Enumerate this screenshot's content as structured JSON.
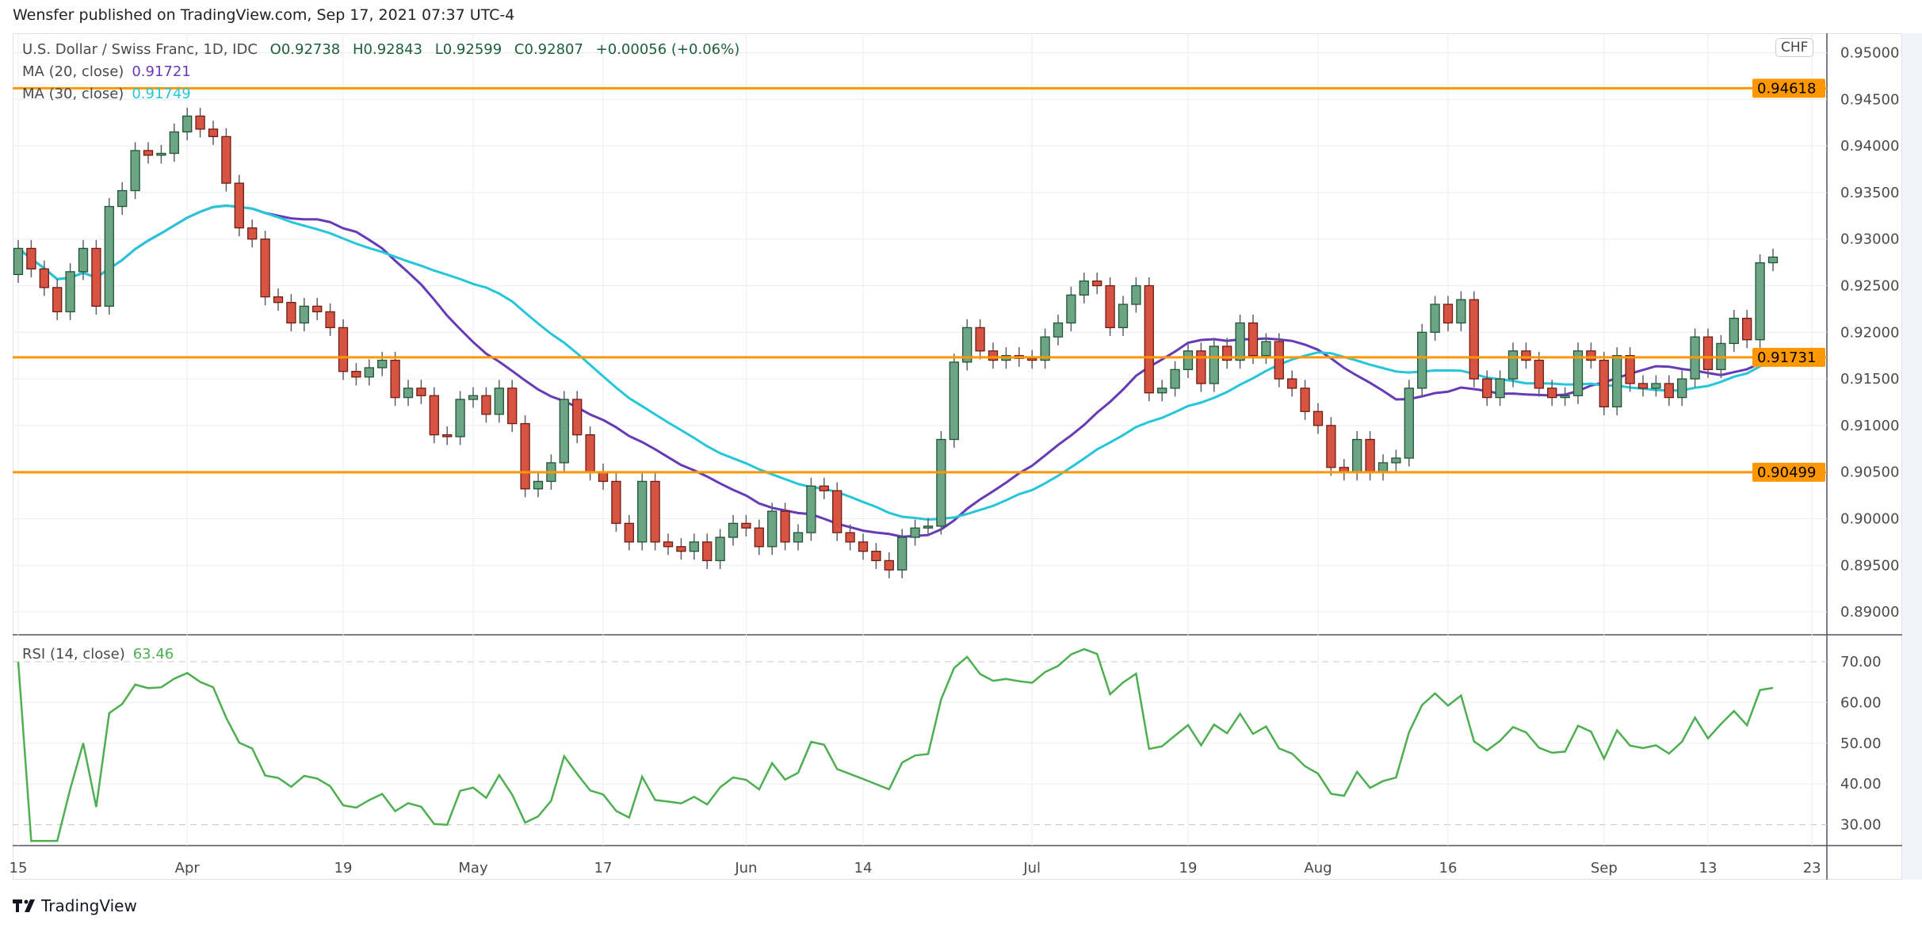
{
  "publisher_line": "Wensfer published on TradingView.com, Sep 17, 2021 07:37 UTC-4",
  "legend": {
    "symbol": "U.S. Dollar / Swiss Franc, 1D, IDC",
    "open": "O0.92738",
    "high": "H0.92843",
    "low": "L0.92599",
    "close": "C0.92807",
    "change": "+0.00056 (+0.06%)",
    "ma20_label": "MA (20, close)",
    "ma20_value": "0.91721",
    "ma30_label": "MA (30, close)",
    "ma30_value": "0.91749",
    "rsi_label": "RSI (14, close)",
    "rsi_value": "63.46"
  },
  "currency": "CHF",
  "logo_text": "TradingView",
  "colors": {
    "up": "#6ba583",
    "up_border": "#225437",
    "down": "#d75442",
    "down_border": "#6f1c13",
    "ma20": "#673ab7",
    "ma30": "#26c6da",
    "rsi": "#4caf50",
    "level": "#ff9800"
  },
  "chart_data": {
    "type": "candlestick",
    "price_axis": {
      "ylim": [
        0.887,
        0.9515
      ],
      "ticks": [
        "0.95000",
        "0.94500",
        "0.94000",
        "0.93500",
        "0.93000",
        "0.92500",
        "0.92000",
        "0.91500",
        "0.91000",
        "0.90500",
        "0.90000",
        "0.89500",
        "0.89000"
      ]
    },
    "levels": [
      {
        "value": 0.94618,
        "label": "0.94618"
      },
      {
        "value": 0.91731,
        "label": "0.91731"
      },
      {
        "value": 0.90499,
        "label": "0.90499"
      }
    ],
    "time_axis": [
      {
        "label": "15",
        "index": 0
      },
      {
        "label": "Apr",
        "index": 13
      },
      {
        "label": "19",
        "index": 25
      },
      {
        "label": "May",
        "index": 35
      },
      {
        "label": "17",
        "index": 45
      },
      {
        "label": "Jun",
        "index": 56
      },
      {
        "label": "14",
        "index": 65
      },
      {
        "label": "Jul",
        "index": 78
      },
      {
        "label": "19",
        "index": 90
      },
      {
        "label": "Aug",
        "index": 100
      },
      {
        "label": "16",
        "index": 110
      },
      {
        "label": "Sep",
        "index": 122
      },
      {
        "label": "13",
        "index": 130
      },
      {
        "label": "23",
        "index": 138
      }
    ],
    "first_open": 0.9262,
    "close": [
      0.929,
      0.9268,
      0.9248,
      0.9222,
      0.9265,
      0.929,
      0.9228,
      0.9335,
      0.9352,
      0.9395,
      0.939,
      0.9392,
      0.9415,
      0.9432,
      0.9418,
      0.941,
      0.936,
      0.9312,
      0.93,
      0.9238,
      0.9232,
      0.921,
      0.9228,
      0.9222,
      0.9205,
      0.9158,
      0.9152,
      0.9162,
      0.917,
      0.913,
      0.914,
      0.9132,
      0.909,
      0.9088,
      0.9128,
      0.9132,
      0.9112,
      0.914,
      0.9102,
      0.9032,
      0.904,
      0.906,
      0.9128,
      0.909,
      0.905,
      0.904,
      0.8995,
      0.8975,
      0.904,
      0.8975,
      0.897,
      0.8965,
      0.8975,
      0.8955,
      0.898,
      0.8995,
      0.899,
      0.897,
      0.9008,
      0.8975,
      0.8985,
      0.9035,
      0.903,
      0.8985,
      0.8975,
      0.8965,
      0.8955,
      0.8945,
      0.898,
      0.899,
      0.8992,
      0.9085,
      0.9168,
      0.9205,
      0.918,
      0.917,
      0.9175,
      0.9172,
      0.917,
      0.9195,
      0.921,
      0.924,
      0.9255,
      0.925,
      0.9205,
      0.923,
      0.925,
      0.9135,
      0.914,
      0.916,
      0.918,
      0.9145,
      0.9185,
      0.917,
      0.921,
      0.9175,
      0.919,
      0.915,
      0.914,
      0.9115,
      0.91,
      0.9055,
      0.905,
      0.9085,
      0.905,
      0.906,
      0.9065,
      0.914,
      0.92,
      0.923,
      0.921,
      0.9235,
      0.915,
      0.913,
      0.915,
      0.918,
      0.917,
      0.914,
      0.913,
      0.9132,
      0.918,
      0.917,
      0.912,
      0.9175,
      0.9145,
      0.914,
      0.9145,
      0.913,
      0.915,
      0.9195,
      0.916,
      0.9188,
      0.9215,
      0.9192,
      0.92746,
      0.92807
    ],
    "rsi_axis": {
      "ylim": [
        25,
        75
      ],
      "ticks": [
        "70.00",
        "60.00",
        "50.00",
        "40.00",
        "30.00"
      ],
      "bands": [
        70,
        30
      ]
    },
    "indicators": [
      "MA 20 close",
      "MA 30 close",
      "RSI 14 close"
    ]
  }
}
